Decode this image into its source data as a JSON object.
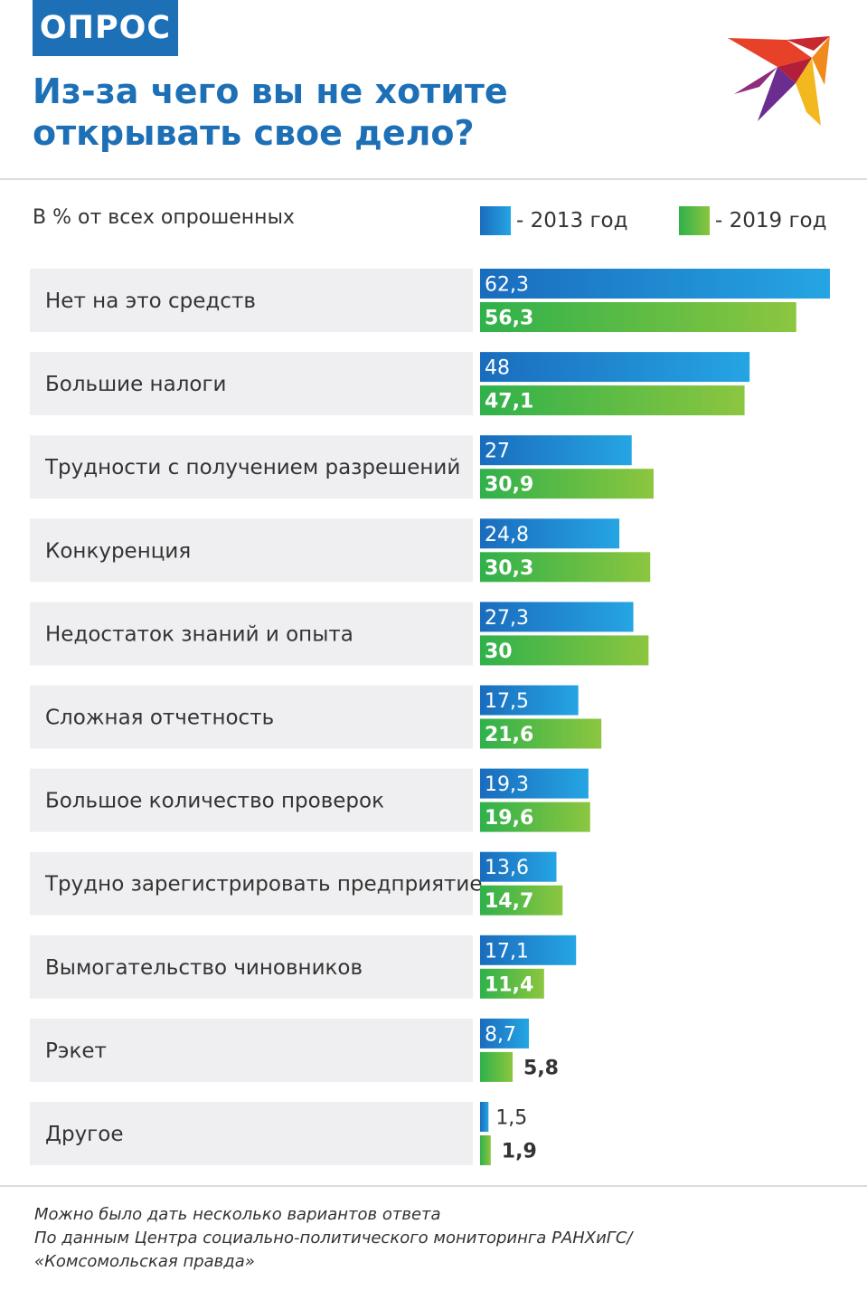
{
  "header": {
    "badge": "ОПРОС",
    "title": "Из-за чего вы не хотите открывать свое дело?"
  },
  "subtitle": "В % от всех опрошенных",
  "legend": [
    {
      "label": "- 2013 год",
      "color": "#1c86d6"
    },
    {
      "label": "- 2019 год",
      "color": "#4fbb45"
    }
  ],
  "chart_data": {
    "type": "bar",
    "orientation": "horizontal",
    "categories": [
      "Нет на это средств",
      "Большие налоги",
      "Трудности с получением разрешений",
      "Конкуренция",
      "Недостаток знаний и опыта",
      "Сложная отчетность",
      "Большое количество проверок",
      "Трудно зарегистрировать предприятие",
      "Вымогательство чиновников",
      "Рэкет",
      "Другое"
    ],
    "series": [
      {
        "name": "2013 год",
        "values": [
          62.3,
          48,
          27,
          24.8,
          27.3,
          17.5,
          19.3,
          13.6,
          17.1,
          8.7,
          1.5
        ],
        "labels": [
          "62,3",
          "48",
          "27",
          "24,8",
          "27,3",
          "17,5",
          "19,3",
          "13,6",
          "17,1",
          "8,7",
          "1,5"
        ],
        "color": "#1c86d6"
      },
      {
        "name": "2019 год",
        "values": [
          56.3,
          47.1,
          30.9,
          30.3,
          30,
          21.6,
          19.6,
          14.7,
          11.4,
          5.8,
          1.9
        ],
        "labels": [
          "56,3",
          "47,1",
          "30,9",
          "30,3",
          "30",
          "21,6",
          "19,6",
          "14,7",
          "11,4",
          "5,8",
          "1,9"
        ],
        "color": "#4fbb45"
      }
    ],
    "xlim": [
      0,
      62.3
    ],
    "grid": false
  },
  "footnote": [
    "Можно было дать несколько вариантов ответа",
    "По данным Центра социально-политического мониторинга РАНХиГС/",
    "«Комсомольская правда»"
  ],
  "logo": {
    "icon": "swallow-bird-logo-icon"
  }
}
